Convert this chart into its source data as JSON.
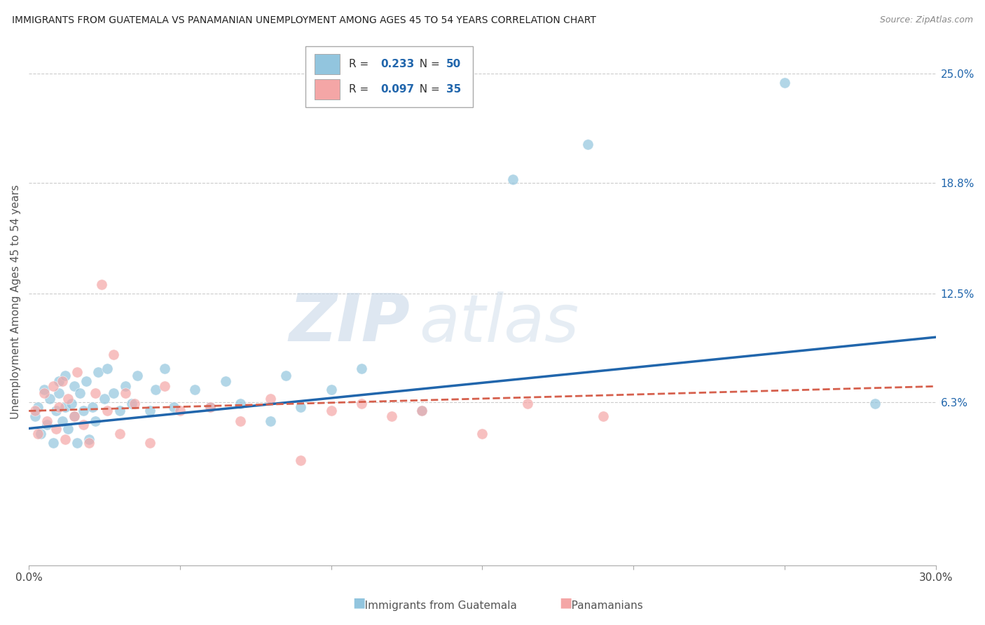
{
  "title": "IMMIGRANTS FROM GUATEMALA VS PANAMANIAN UNEMPLOYMENT AMONG AGES 45 TO 54 YEARS CORRELATION CHART",
  "source": "Source: ZipAtlas.com",
  "ylabel": "Unemployment Among Ages 45 to 54 years",
  "xlim": [
    0.0,
    0.3
  ],
  "ylim": [
    -0.03,
    0.27
  ],
  "ytick_labels_right": [
    "25.0%",
    "18.8%",
    "12.5%",
    "6.3%"
  ],
  "ytick_vals_right": [
    0.25,
    0.188,
    0.125,
    0.063
  ],
  "blue_R": "0.233",
  "blue_N": "50",
  "pink_R": "0.097",
  "pink_N": "35",
  "blue_color": "#92c5de",
  "pink_color": "#f4a6a6",
  "blue_line_color": "#2166ac",
  "pink_line_color": "#d6604d",
  "watermark_zip": "ZIP",
  "watermark_atlas": "atlas",
  "blue_scatter_x": [
    0.002,
    0.003,
    0.004,
    0.005,
    0.006,
    0.007,
    0.008,
    0.009,
    0.01,
    0.01,
    0.011,
    0.012,
    0.012,
    0.013,
    0.014,
    0.015,
    0.015,
    0.016,
    0.017,
    0.018,
    0.019,
    0.02,
    0.021,
    0.022,
    0.023,
    0.025,
    0.026,
    0.028,
    0.03,
    0.032,
    0.034,
    0.036,
    0.04,
    0.042,
    0.045,
    0.048,
    0.055,
    0.06,
    0.065,
    0.07,
    0.08,
    0.085,
    0.09,
    0.1,
    0.11,
    0.13,
    0.16,
    0.185,
    0.25,
    0.28
  ],
  "blue_scatter_y": [
    0.055,
    0.06,
    0.045,
    0.07,
    0.05,
    0.065,
    0.04,
    0.058,
    0.068,
    0.075,
    0.052,
    0.06,
    0.078,
    0.048,
    0.062,
    0.055,
    0.072,
    0.04,
    0.068,
    0.058,
    0.075,
    0.042,
    0.06,
    0.052,
    0.08,
    0.065,
    0.082,
    0.068,
    0.058,
    0.072,
    0.062,
    0.078,
    0.058,
    0.07,
    0.082,
    0.06,
    0.07,
    0.06,
    0.075,
    0.062,
    0.052,
    0.078,
    0.06,
    0.07,
    0.082,
    0.058,
    0.19,
    0.21,
    0.245,
    0.062
  ],
  "pink_scatter_x": [
    0.002,
    0.003,
    0.005,
    0.006,
    0.008,
    0.009,
    0.01,
    0.011,
    0.012,
    0.013,
    0.015,
    0.016,
    0.018,
    0.02,
    0.022,
    0.024,
    0.026,
    0.028,
    0.03,
    0.032,
    0.035,
    0.04,
    0.045,
    0.05,
    0.06,
    0.07,
    0.08,
    0.09,
    0.1,
    0.11,
    0.12,
    0.13,
    0.15,
    0.165,
    0.19
  ],
  "pink_scatter_y": [
    0.058,
    0.045,
    0.068,
    0.052,
    0.072,
    0.048,
    0.06,
    0.075,
    0.042,
    0.065,
    0.055,
    0.08,
    0.05,
    0.04,
    0.068,
    0.13,
    0.058,
    0.09,
    0.045,
    0.068,
    0.062,
    0.04,
    0.072,
    0.058,
    0.06,
    0.052,
    0.065,
    0.03,
    0.058,
    0.062,
    0.055,
    0.058,
    0.045,
    0.062,
    0.055
  ],
  "blue_line_x": [
    0.0,
    0.3
  ],
  "blue_line_y": [
    0.048,
    0.1
  ],
  "pink_line_x": [
    0.0,
    0.3
  ],
  "pink_line_y": [
    0.058,
    0.072
  ]
}
